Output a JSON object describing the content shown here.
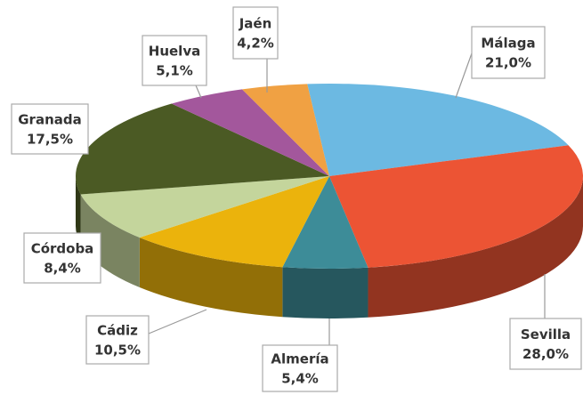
{
  "chart_data": {
    "type": "pie",
    "categories": [
      "Málaga",
      "Sevilla",
      "Almería",
      "Cádiz",
      "Córdoba",
      "Granada",
      "Huelva",
      "Jaén"
    ],
    "values": [
      21.0,
      28.0,
      5.4,
      10.5,
      8.4,
      17.5,
      5.1,
      4.2
    ],
    "value_labels": [
      "21,0%",
      "28,0%",
      "5,4%",
      "10,5%",
      "8,4%",
      "17,5%",
      "5,1%",
      "4,2%"
    ],
    "colors": [
      "#6cb9e2",
      "#ec5434",
      "#3d8c98",
      "#ebb30c",
      "#c4d59c",
      "#4b5a24",
      "#a3579c",
      "#f0a143"
    ]
  }
}
